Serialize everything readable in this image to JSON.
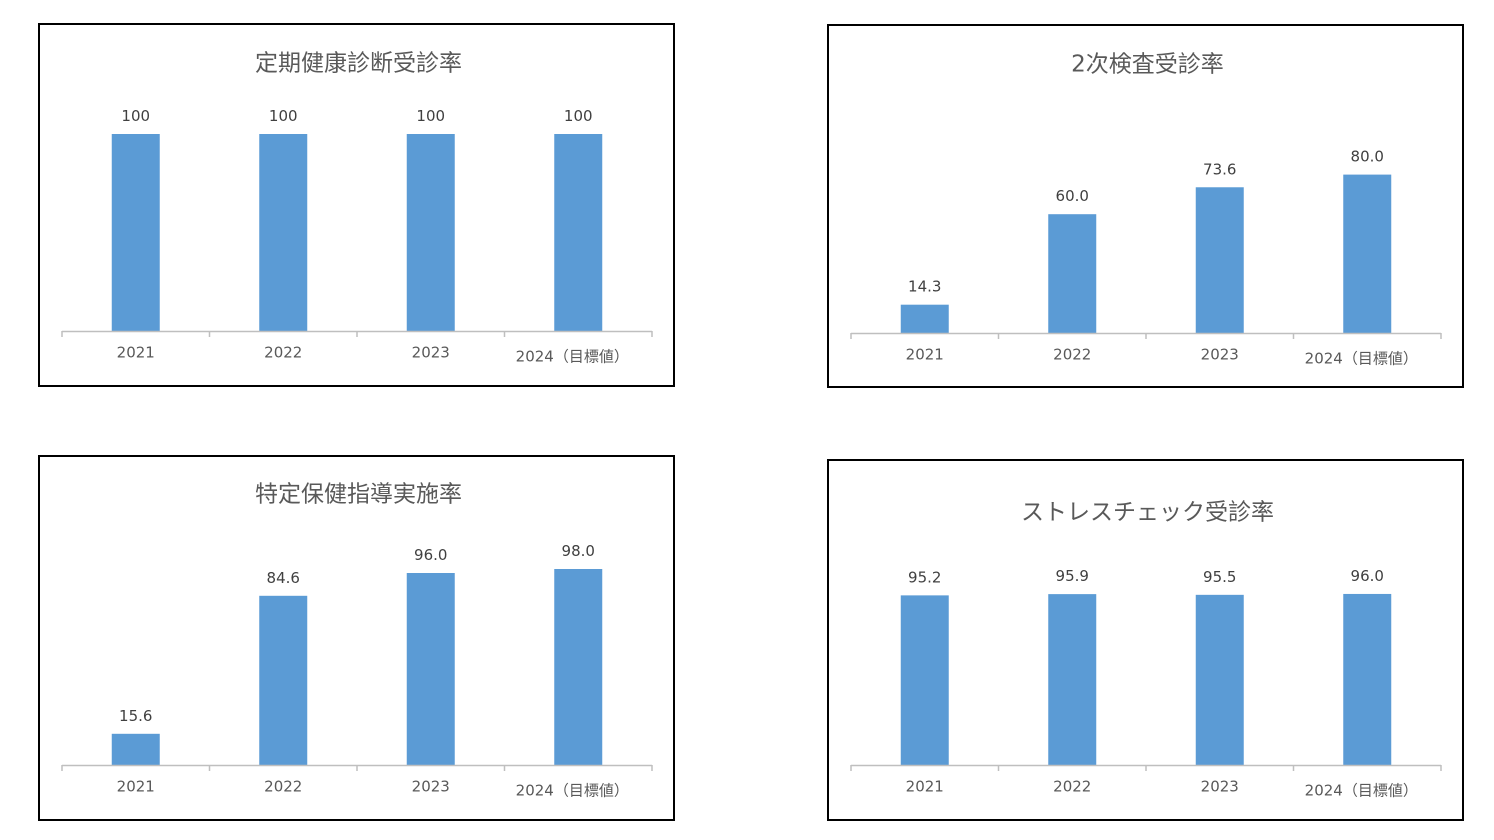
{
  "colors": {
    "bar": "#5b9bd5",
    "axis": "#bfbfbf",
    "title": "#595959",
    "label": "#404040",
    "frame": "#000000"
  },
  "chart_data": [
    {
      "type": "bar",
      "title": "定期健康診断受診率",
      "xlabel": "",
      "ylabel": "",
      "categories": [
        "2021",
        "2022",
        "2023",
        "2024（目標値）"
      ],
      "values": [
        100,
        100,
        100,
        100
      ],
      "data_labels": [
        "100",
        "100",
        "100",
        "100"
      ],
      "ylim": [
        0,
        100
      ],
      "grid": false,
      "legend": "none"
    },
    {
      "type": "bar",
      "title": "2次検査受診率",
      "xlabel": "",
      "ylabel": "",
      "categories": [
        "2021",
        "2022",
        "2023",
        "2024（目標値）"
      ],
      "values": [
        14.3,
        60.0,
        73.6,
        80.0
      ],
      "data_labels": [
        "14.3",
        "60.0",
        "73.6",
        "80.0"
      ],
      "ylim": [
        0,
        100
      ],
      "grid": false,
      "legend": "none"
    },
    {
      "type": "bar",
      "title": "特定保健指導実施率",
      "xlabel": "",
      "ylabel": "",
      "categories": [
        "2021",
        "2022",
        "2023",
        "2024（目標値）"
      ],
      "values": [
        15.6,
        84.6,
        96.0,
        98.0
      ],
      "data_labels": [
        "15.6",
        "84.6",
        "96.0",
        "98.0"
      ],
      "ylim": [
        0,
        100
      ],
      "grid": false,
      "legend": "none"
    },
    {
      "type": "bar",
      "title": "ストレスチェック受診率",
      "xlabel": "",
      "ylabel": "",
      "categories": [
        "2021",
        "2022",
        "2023",
        "2024（目標値）"
      ],
      "values": [
        95.2,
        95.9,
        95.5,
        96.0
      ],
      "data_labels": [
        "95.2",
        "95.9",
        "95.5",
        "96.0"
      ],
      "ylim": [
        0,
        110
      ],
      "grid": false,
      "legend": "none"
    }
  ]
}
